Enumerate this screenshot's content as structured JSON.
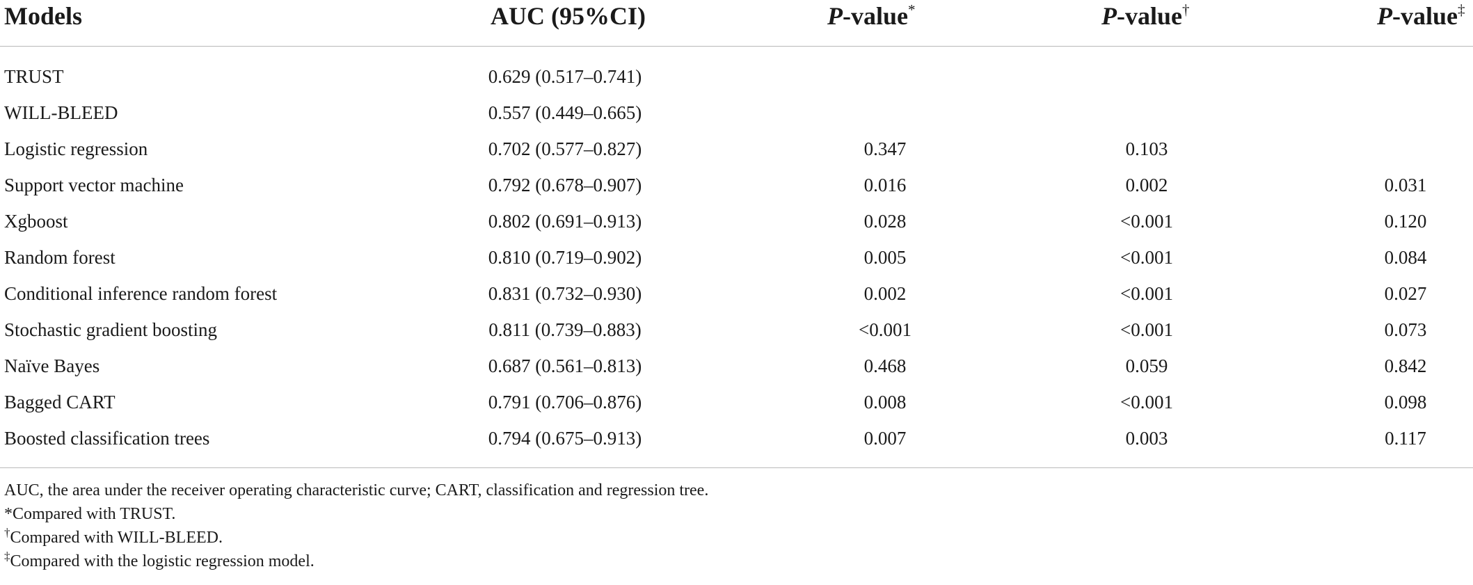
{
  "table": {
    "headers": {
      "models": "Models",
      "auc": "AUC (95%CI)",
      "p_label": "P",
      "p_suffix": "-value",
      "p1_mark": "*",
      "p2_mark": "†",
      "p3_mark": "‡"
    },
    "rows": [
      {
        "model": "TRUST",
        "auc": "0.629 (0.517–0.741)",
        "p1": "",
        "p2": "",
        "p3": ""
      },
      {
        "model": "WILL-BLEED",
        "auc": "0.557 (0.449–0.665)",
        "p1": "",
        "p2": "",
        "p3": ""
      },
      {
        "model": "Logistic regression",
        "auc": "0.702 (0.577–0.827)",
        "p1": "0.347",
        "p2": "0.103",
        "p3": ""
      },
      {
        "model": "Support vector machine",
        "auc": "0.792 (0.678–0.907)",
        "p1": "0.016",
        "p2": "0.002",
        "p3": "0.031"
      },
      {
        "model": "Xgboost",
        "auc": "0.802 (0.691–0.913)",
        "p1": "0.028",
        "p2": "<0.001",
        "p3": "0.120"
      },
      {
        "model": "Random forest",
        "auc": "0.810 (0.719–0.902)",
        "p1": "0.005",
        "p2": "<0.001",
        "p3": "0.084"
      },
      {
        "model": "Conditional inference random forest",
        "auc": "0.831 (0.732–0.930)",
        "p1": "0.002",
        "p2": "<0.001",
        "p3": "0.027"
      },
      {
        "model": "Stochastic gradient boosting",
        "auc": "0.811 (0.739–0.883)",
        "p1": "<0.001",
        "p2": "<0.001",
        "p3": "0.073"
      },
      {
        "model": "Naïve Bayes",
        "auc": "0.687 (0.561–0.813)",
        "p1": "0.468",
        "p2": "0.059",
        "p3": "0.842"
      },
      {
        "model": "Bagged CART",
        "auc": "0.791 (0.706–0.876)",
        "p1": "0.008",
        "p2": "<0.001",
        "p3": "0.098"
      },
      {
        "model": "Boosted classification trees",
        "auc": "0.794 (0.675–0.913)",
        "p1": "0.007",
        "p2": "0.003",
        "p3": "0.117"
      }
    ]
  },
  "footnotes": {
    "abbrev": "AUC, the area under the receiver operating characteristic curve; CART, classification and regression tree.",
    "n1_mark": "*",
    "n1_text": "Compared with TRUST.",
    "n2_mark": "†",
    "n2_text": "Compared with WILL-BLEED.",
    "n3_mark": "‡",
    "n3_text": "Compared with the logistic regression model."
  }
}
